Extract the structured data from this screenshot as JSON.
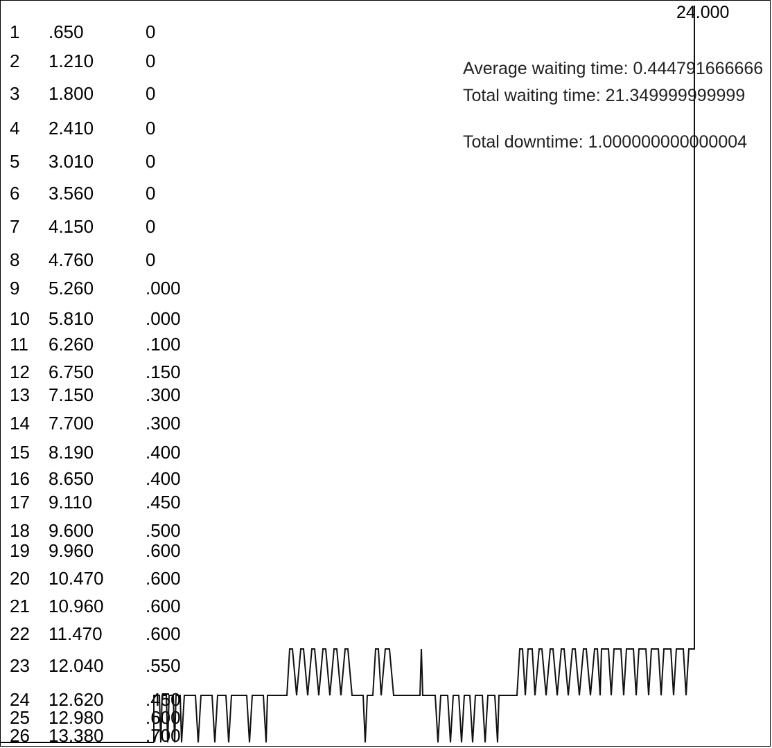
{
  "rows": [
    {
      "id": "1",
      "arrival": ".650",
      "wait": "0"
    },
    {
      "id": "2",
      "arrival": "1.210",
      "wait": "0"
    },
    {
      "id": "3",
      "arrival": "1.800",
      "wait": "0"
    },
    {
      "id": "4",
      "arrival": "2.410",
      "wait": "0"
    },
    {
      "id": "5",
      "arrival": "3.010",
      "wait": "0"
    },
    {
      "id": "6",
      "arrival": "3.560",
      "wait": "0"
    },
    {
      "id": "7",
      "arrival": "4.150",
      "wait": "0"
    },
    {
      "id": "8",
      "arrival": "4.760",
      "wait": "0"
    },
    {
      "id": "9",
      "arrival": "5.260",
      "wait": ".000"
    },
    {
      "id": "10",
      "arrival": "5.810",
      "wait": ".000"
    },
    {
      "id": "11",
      "arrival": "6.260",
      "wait": ".100"
    },
    {
      "id": "12",
      "arrival": "6.750",
      "wait": ".150"
    },
    {
      "id": "13",
      "arrival": "7.150",
      "wait": ".300"
    },
    {
      "id": "14",
      "arrival": "7.700",
      "wait": ".300"
    },
    {
      "id": "15",
      "arrival": "8.190",
      "wait": ".400"
    },
    {
      "id": "16",
      "arrival": "8.650",
      "wait": ".400"
    },
    {
      "id": "17",
      "arrival": "9.110",
      "wait": ".450"
    },
    {
      "id": "18",
      "arrival": "9.600",
      "wait": ".500"
    },
    {
      "id": "19",
      "arrival": "9.960",
      "wait": ".600"
    },
    {
      "id": "20",
      "arrival": "10.470",
      "wait": ".600"
    },
    {
      "id": "21",
      "arrival": "10.960",
      "wait": ".600"
    },
    {
      "id": "22",
      "arrival": "11.470",
      "wait": ".600"
    },
    {
      "id": "23",
      "arrival": "12.040",
      "wait": ".550"
    },
    {
      "id": "24",
      "arrival": "12.620",
      "wait": ".450"
    },
    {
      "id": "25",
      "arrival": "12.980",
      "wait": ".600"
    },
    {
      "id": "26",
      "arrival": "13.380",
      "wait": ".700"
    }
  ],
  "stats": {
    "average_waiting_time": "Average waiting time: 0.444791666666",
    "total_waiting_time": "Total waiting time: 21.349999999999",
    "total_downtime": "Total downtime: 1.000000000000004"
  },
  "plot": {
    "end_time_label": "24.000"
  }
}
